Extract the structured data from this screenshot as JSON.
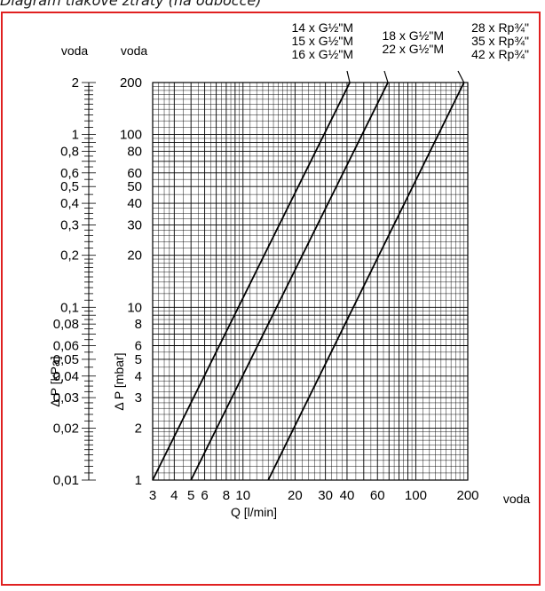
{
  "header": {
    "title": "Diagram tlakové ztráty (na odbočce)"
  },
  "chart_data": {
    "type": "line",
    "x_scale": "log",
    "y_scale": "log",
    "xlim": [
      3,
      200
    ],
    "ylim": [
      1,
      200
    ],
    "xlabel": "Q [l/min]",
    "ylabel": "Δ P [mbar]",
    "ylabel_secondary": "Δ P [kPa]",
    "x_medium_label": "voda",
    "y_medium_label": "voda",
    "y2_medium_label": "voda",
    "x_ticks": [
      "3",
      "4",
      "5",
      "6",
      "8",
      "10",
      "20",
      "30",
      "40",
      "60",
      "100",
      "200"
    ],
    "x_tick_values": [
      3,
      4,
      5,
      6,
      8,
      10,
      20,
      30,
      40,
      60,
      100,
      200
    ],
    "y_ticks": [
      "1",
      "2",
      "3",
      "4",
      "5",
      "6",
      "8",
      "10",
      "20",
      "30",
      "40",
      "50",
      "60",
      "80",
      "100",
      "200"
    ],
    "y_tick_values": [
      1,
      2,
      3,
      4,
      5,
      6,
      8,
      10,
      20,
      30,
      40,
      50,
      60,
      80,
      100,
      200
    ],
    "y2_ticks": [
      "0,01",
      "0,02",
      "0,03",
      "0,04",
      "0,05",
      "0,06",
      "0,08",
      "0,1",
      "0,2",
      "0,3",
      "0,4",
      "0,5",
      "0,6",
      "0,8",
      "1",
      "2"
    ],
    "grid": true,
    "series": [
      {
        "name": "14 x G½\"M / 15 x G½\"M / 16 x G½\"M",
        "x": [
          3.0,
          41.5
        ],
        "y": [
          1,
          200
        ]
      },
      {
        "name": "18 x G½\"M / 22 x G½\"M",
        "x": [
          5.0,
          69.0
        ],
        "y": [
          1,
          200
        ]
      },
      {
        "name": "28 x Rp¾\" / 35 x Rp¾\" / 42 x Rp¾\"",
        "x": [
          14.0,
          190.0
        ],
        "y": [
          1,
          200
        ]
      }
    ],
    "series_labels": [
      [
        "14 x G½\"M",
        "15 x G½\"M",
        "16 x G½\"M"
      ],
      [
        "18 x G½\"M",
        "22 x G½\"M"
      ],
      [
        "28 x Rp¾\"",
        "35 x Rp¾\"",
        "42 x Rp¾\""
      ]
    ]
  }
}
